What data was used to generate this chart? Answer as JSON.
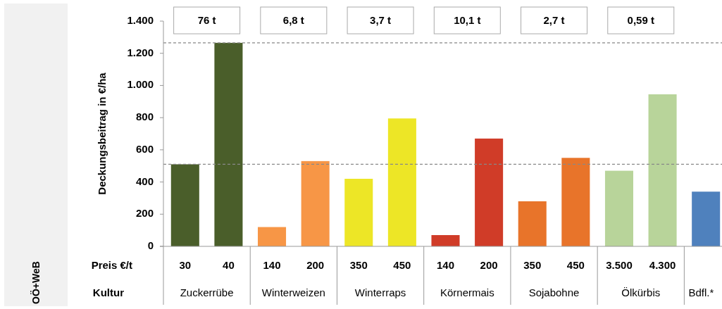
{
  "chart_data": {
    "type": "bar",
    "ylabel": "Deckungsbeitrag in €/ha",
    "categories": [
      "30",
      "40",
      "140",
      "200",
      "350",
      "450",
      "140",
      "200",
      "350",
      "450",
      "3.500",
      "4.300",
      null
    ],
    "values": [
      510,
      1265,
      120,
      530,
      420,
      795,
      70,
      670,
      280,
      550,
      470,
      945,
      340
    ],
    "colors": [
      "#4a5e2a",
      "#4a5e2a",
      "#f79646",
      "#f79646",
      "#ede626",
      "#ede626",
      "#d03c28",
      "#d03c28",
      "#e8742a",
      "#e8742a",
      "#b8d49a",
      "#b8d49a",
      "#4f81bd"
    ],
    "ylim": [
      0,
      1400
    ],
    "yticks": [
      0,
      200,
      400,
      600,
      800,
      {
        "value": 1000,
        "label": "1.000"
      },
      {
        "value": 1200,
        "label": "1.200"
      },
      {
        "value": 1400,
        "label": "1.400"
      }
    ],
    "grid": false,
    "ref_lines": [
      {
        "axis": "y",
        "value": 510,
        "color": "#888888",
        "line_style": "dashed"
      },
      {
        "axis": "y",
        "value": 1265,
        "color": "#888888",
        "line_style": "dashed"
      }
    ],
    "annotations": [
      "Preis €/t",
      "Kultur",
      "Zuckerrübe",
      "Winterweizen",
      "Winterraps",
      "Körnermais",
      "Sojabohne",
      "Ölkürbis",
      "Bdfl.*",
      "76 t",
      "6,8 t",
      "3,7 t",
      "10,1 t",
      "2,7 t",
      "0,59 t",
      "OÖ+WeB"
    ]
  }
}
